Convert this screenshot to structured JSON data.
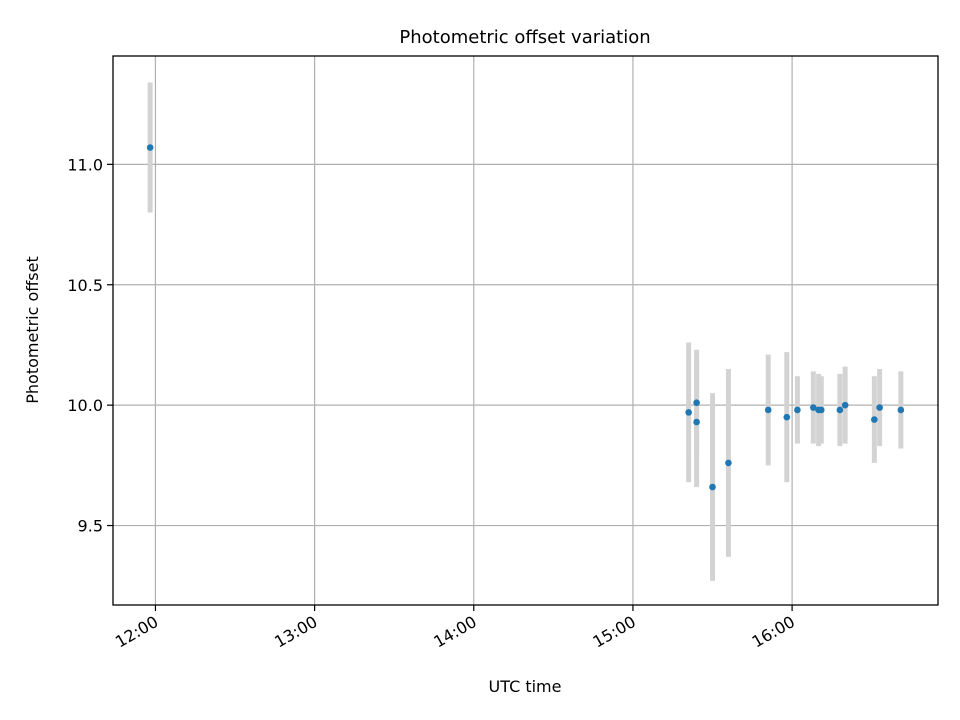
{
  "chart_data": {
    "type": "scatter",
    "title": "Photometric offset variation",
    "xlabel": "UTC time",
    "ylabel": "Photometric offset",
    "x_ticks": [
      "12:00",
      "13:00",
      "14:00",
      "15:00",
      "16:00"
    ],
    "y_ticks": [
      "9.5",
      "10.0",
      "10.5",
      "11.0"
    ],
    "xlim": [
      "11:44",
      "16:55"
    ],
    "ylim": [
      9.17,
      11.45
    ],
    "grid": true,
    "legend": "none",
    "colors": {
      "points": "#1f77b4",
      "error_bars": "#d3d3d3",
      "grid": "#b0b0b0"
    },
    "points": [
      {
        "x": "11:58",
        "y": 11.07,
        "err": 0.27
      },
      {
        "x": "15:21",
        "y": 9.97,
        "err": 0.29
      },
      {
        "x": "15:24",
        "y": 10.01,
        "err": 0.22
      },
      {
        "x": "15:24",
        "y": 9.93,
        "err": 0.27
      },
      {
        "x": "15:30",
        "y": 9.66,
        "err": 0.39
      },
      {
        "x": "15:36",
        "y": 9.76,
        "err": 0.39
      },
      {
        "x": "15:51",
        "y": 9.98,
        "err": 0.23
      },
      {
        "x": "15:58",
        "y": 9.95,
        "err": 0.27
      },
      {
        "x": "16:02",
        "y": 9.98,
        "err": 0.14
      },
      {
        "x": "16:08",
        "y": 9.99,
        "err": 0.15
      },
      {
        "x": "16:10",
        "y": 9.98,
        "err": 0.15
      },
      {
        "x": "16:11",
        "y": 9.98,
        "err": 0.14
      },
      {
        "x": "16:18",
        "y": 9.98,
        "err": 0.15
      },
      {
        "x": "16:20",
        "y": 10.0,
        "err": 0.16
      },
      {
        "x": "16:31",
        "y": 9.94,
        "err": 0.18
      },
      {
        "x": "16:33",
        "y": 9.99,
        "err": 0.16
      },
      {
        "x": "16:41",
        "y": 9.98,
        "err": 0.16
      }
    ]
  }
}
